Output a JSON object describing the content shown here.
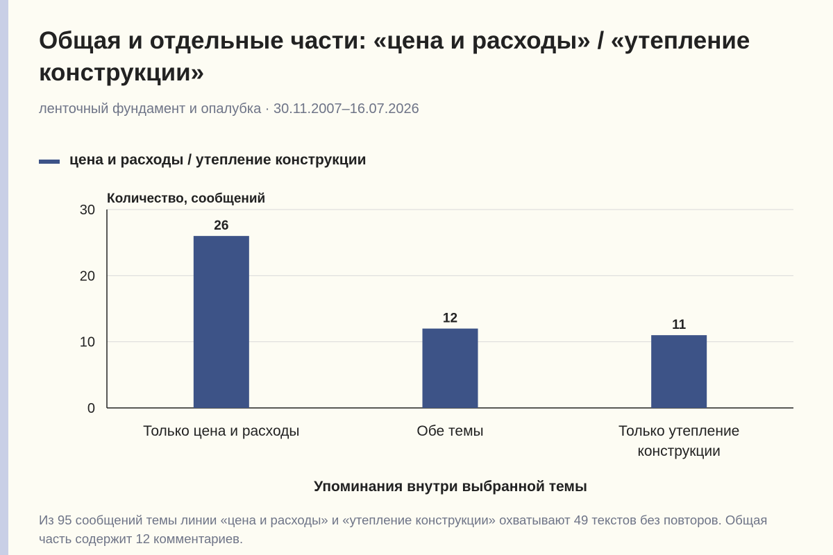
{
  "header": {
    "title": "Общая и отдельные части: «цена и расходы» / «утепление конструкции»",
    "subtitle": "ленточный фундамент и опалубка · 30.11.2007–16.07.2026"
  },
  "legend": {
    "label": "цена и расходы / утепление конструкции"
  },
  "footnote": "Из 95 сообщений темы линии «цена и расходы» и «утепление конструкции» охватывают 49 текстов без повторов. Общая часть содержит 12 комментариев.",
  "colors": {
    "bar": "#3d5387",
    "grid": "#d9d9d9",
    "axis": "#222222"
  },
  "chart_data": {
    "type": "bar",
    "categories": [
      [
        "Только цена и расходы"
      ],
      [
        "Обе темы"
      ],
      [
        "Только утепление",
        "конструкции"
      ]
    ],
    "series": [
      {
        "name": "цена и расходы / утепление конструкции",
        "values": [
          26,
          12,
          11
        ]
      }
    ],
    "ylabel": "Количество, сообщений",
    "xlabel": "Упоминания внутри выбранной темы",
    "ylim": [
      0,
      30
    ],
    "yticks": [
      0,
      10,
      20,
      30
    ],
    "grid": true,
    "legend_position": "top-left"
  }
}
